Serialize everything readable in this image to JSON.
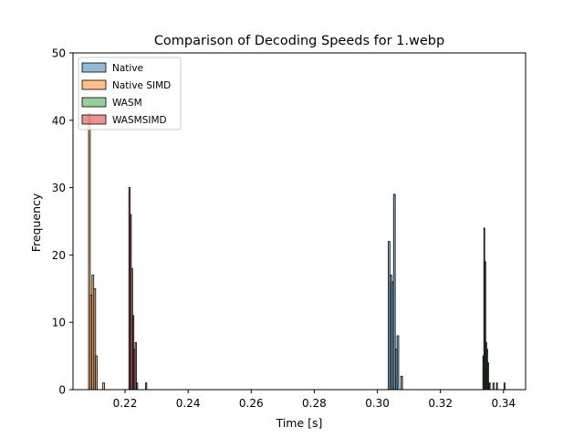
{
  "chart_data": {
    "type": "histogram",
    "title": "Comparison of Decoding Speeds for 1.webp",
    "xlabel": "Time [s]",
    "ylabel": "Frequency",
    "xlim": [
      0.2035,
      0.347
    ],
    "ylim": [
      0,
      50
    ],
    "xticks": [
      0.22,
      0.24,
      0.26,
      0.28,
      0.3,
      0.32,
      0.34
    ],
    "xtick_labels": [
      "0.22",
      "0.24",
      "0.26",
      "0.28",
      "0.30",
      "0.32",
      "0.34"
    ],
    "yticks": [
      0,
      10,
      20,
      30,
      40,
      50
    ],
    "ytick_labels": [
      "0",
      "10",
      "20",
      "30",
      "40",
      "50"
    ],
    "grid": false,
    "legend_position": "top-left",
    "series": [
      {
        "name": "Native",
        "color": "#1f77b4",
        "bin_width": 0.00055,
        "bins": [
          {
            "x": 0.3037,
            "count": 22
          },
          {
            "x": 0.3043,
            "count": 17
          },
          {
            "x": 0.3048,
            "count": 16
          },
          {
            "x": 0.3054,
            "count": 29
          },
          {
            "x": 0.306,
            "count": 6
          },
          {
            "x": 0.3065,
            "count": 8
          },
          {
            "x": 0.3077,
            "count": 2
          }
        ]
      },
      {
        "name": "Native SIMD",
        "color": "#ff7f0e",
        "bin_width": 0.00055,
        "bins": [
          {
            "x": 0.2087,
            "count": 41
          },
          {
            "x": 0.2092,
            "count": 14
          },
          {
            "x": 0.2098,
            "count": 17
          },
          {
            "x": 0.2104,
            "count": 15
          },
          {
            "x": 0.2109,
            "count": 5
          },
          {
            "x": 0.2132,
            "count": 1
          }
        ]
      },
      {
        "name": "WASM",
        "color": "#2ca02c",
        "bin_width": 0.0003,
        "bins": [
          {
            "x": 0.3336,
            "count": 5
          },
          {
            "x": 0.3339,
            "count": 24
          },
          {
            "x": 0.3342,
            "count": 19
          },
          {
            "x": 0.3345,
            "count": 7
          },
          {
            "x": 0.3348,
            "count": 6
          },
          {
            "x": 0.3351,
            "count": 4
          },
          {
            "x": 0.3356,
            "count": 1
          },
          {
            "x": 0.3368,
            "count": 1
          },
          {
            "x": 0.3379,
            "count": 1
          },
          {
            "x": 0.3403,
            "count": 1
          }
        ]
      },
      {
        "name": "WASMSIMD",
        "color": "#d62728",
        "bin_width": 0.0004,
        "bins": [
          {
            "x": 0.2214,
            "count": 30
          },
          {
            "x": 0.2218,
            "count": 26
          },
          {
            "x": 0.2222,
            "count": 18
          },
          {
            "x": 0.2226,
            "count": 11
          },
          {
            "x": 0.223,
            "count": 6
          },
          {
            "x": 0.2234,
            "count": 7
          },
          {
            "x": 0.2238,
            "count": 1
          },
          {
            "x": 0.2267,
            "count": 1
          }
        ]
      }
    ]
  }
}
